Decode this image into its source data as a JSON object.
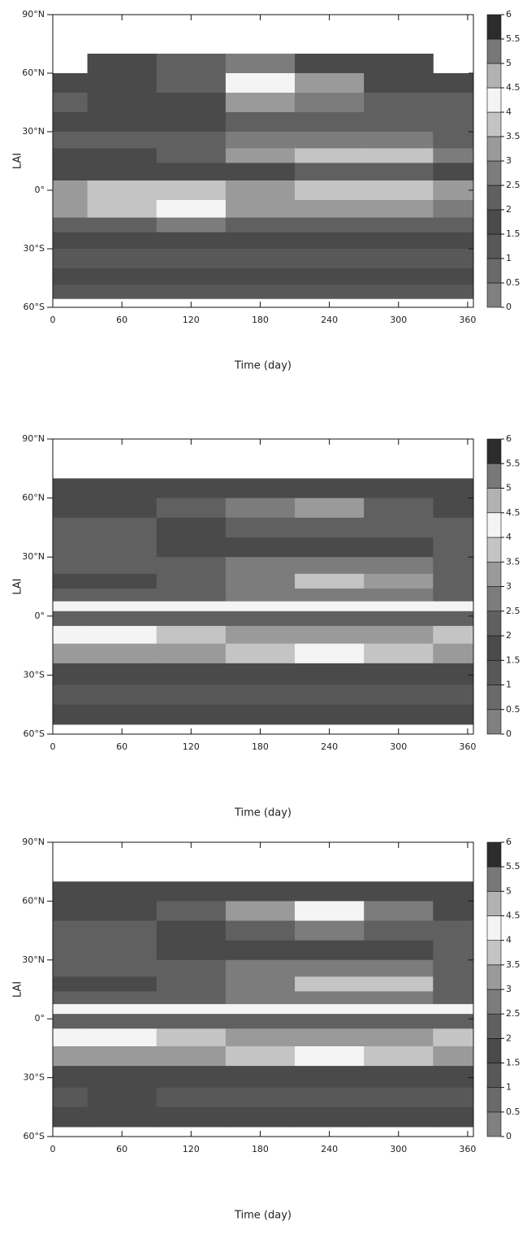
{
  "chart_data": [
    {
      "type": "heatmap",
      "xlabel": "Time (day)",
      "ylabel": "LAI",
      "x": [
        0,
        60,
        120,
        180,
        240,
        300,
        360
      ],
      "y": [
        65,
        55,
        45,
        35,
        25,
        18,
        10,
        0,
        -10,
        -18,
        -25,
        -35,
        -45,
        -52
      ],
      "z": [
        [
          null,
          1.5,
          2,
          2.5,
          1.5,
          1.5,
          null
        ],
        [
          1.5,
          1.5,
          2,
          4,
          3,
          1.5,
          1.5
        ],
        [
          2,
          1.5,
          1.5,
          3,
          2.5,
          2,
          2
        ],
        [
          1.5,
          1.5,
          1.5,
          2,
          2,
          2,
          2
        ],
        [
          2,
          2,
          2,
          2.5,
          2.5,
          2.5,
          2
        ],
        [
          1.5,
          1.5,
          2,
          3,
          3.5,
          3.5,
          2.5
        ],
        [
          1.5,
          1.5,
          1.5,
          1.5,
          2,
          2,
          1.5
        ],
        [
          3,
          3.5,
          3.5,
          3,
          3.5,
          3.5,
          3
        ],
        [
          3,
          3.5,
          4,
          3,
          3,
          3,
          2.5
        ],
        [
          2,
          2,
          2.5,
          2,
          2,
          2,
          2
        ],
        [
          1.5,
          1.5,
          1.5,
          1.5,
          1.5,
          1.5,
          1.5
        ],
        [
          1,
          1,
          1,
          1,
          1,
          1,
          1
        ],
        [
          1.5,
          1.5,
          1.5,
          1.5,
          1.5,
          1.5,
          1.5
        ],
        [
          1,
          1,
          1,
          1,
          1,
          1,
          1
        ]
      ],
      "xlim": [
        0,
        365
      ],
      "ylim": [
        -60,
        90
      ],
      "xticks": [
        0,
        60,
        120,
        180,
        240,
        300,
        360
      ],
      "yticks": [
        {
          "value": 90,
          "label": "90°N"
        },
        {
          "value": 60,
          "label": "60°N"
        },
        {
          "value": 30,
          "label": "30°N"
        },
        {
          "value": 0,
          "label": "0°"
        },
        {
          "value": -30,
          "label": "30°S"
        },
        {
          "value": -60,
          "label": "60°S"
        }
      ],
      "clevels": [
        0,
        0.5,
        1,
        1.5,
        2,
        2.5,
        3,
        3.5,
        4,
        4.5,
        5,
        5.5,
        6
      ],
      "colors": [
        "#808080",
        "#6a6a6a",
        "#585858",
        "#4a4a4a",
        "#606060",
        "#7c7c7c",
        "#9a9a9a",
        "#c4c4c4",
        "#f4f4f4",
        "#b2b2b2",
        "#787878",
        "#2c2c2c"
      ]
    },
    {
      "type": "heatmap",
      "xlabel": "Time (day)",
      "ylabel": "LAI",
      "x": [
        0,
        60,
        120,
        180,
        240,
        300,
        360
      ],
      "y": [
        65,
        55,
        45,
        35,
        25,
        18,
        10,
        5,
        0,
        -10,
        -18,
        -30,
        -40,
        -50
      ],
      "z": [
        [
          1.5,
          1.5,
          1.5,
          1.5,
          1.5,
          1.5,
          1.5
        ],
        [
          1.5,
          1.5,
          2,
          2.5,
          3,
          2,
          1.5
        ],
        [
          2,
          2,
          1.5,
          2,
          2,
          2,
          2
        ],
        [
          2,
          2,
          1.5,
          1.5,
          1.5,
          1.5,
          2
        ],
        [
          2,
          2,
          2,
          2.5,
          2.5,
          2.5,
          2
        ],
        [
          1.5,
          1.5,
          2,
          2.5,
          3.5,
          3,
          2
        ],
        [
          2,
          2,
          2,
          2.5,
          2.5,
          2.5,
          2
        ],
        [
          4,
          4,
          4,
          4,
          4,
          4,
          4
        ],
        [
          2,
          2,
          2,
          2,
          2,
          2,
          2
        ],
        [
          4,
          4,
          3.5,
          3,
          3,
          3,
          3.5
        ],
        [
          3,
          3,
          3,
          3.5,
          4,
          3.5,
          3
        ],
        [
          1.5,
          1.5,
          1.5,
          1.5,
          1.5,
          1.5,
          1.5
        ],
        [
          1,
          1,
          1,
          1,
          1,
          1,
          1
        ],
        [
          1.5,
          1.5,
          1.5,
          1.5,
          1.5,
          1.5,
          1.5
        ]
      ],
      "xlim": [
        0,
        365
      ],
      "ylim": [
        -60,
        90
      ],
      "xticks": [
        0,
        60,
        120,
        180,
        240,
        300,
        360
      ],
      "yticks": [
        {
          "value": 90,
          "label": "90°N"
        },
        {
          "value": 60,
          "label": "60°N"
        },
        {
          "value": 30,
          "label": "30°N"
        },
        {
          "value": 0,
          "label": "0°"
        },
        {
          "value": -30,
          "label": "30°S"
        },
        {
          "value": -60,
          "label": "60°S"
        }
      ],
      "clevels": [
        0,
        0.5,
        1,
        1.5,
        2,
        2.5,
        3,
        3.5,
        4,
        4.5,
        5,
        5.5,
        6
      ],
      "colors": [
        "#808080",
        "#6a6a6a",
        "#585858",
        "#4a4a4a",
        "#606060",
        "#7c7c7c",
        "#9a9a9a",
        "#c4c4c4",
        "#f4f4f4",
        "#b2b2b2",
        "#787878",
        "#2c2c2c"
      ]
    },
    {
      "type": "heatmap",
      "xlabel": "Time (day)",
      "ylabel": "LAI",
      "x": [
        0,
        60,
        120,
        180,
        240,
        300,
        360
      ],
      "y": [
        65,
        55,
        45,
        35,
        25,
        18,
        10,
        5,
        0,
        -10,
        -18,
        -30,
        -40,
        -50
      ],
      "z": [
        [
          1.5,
          1.5,
          1.5,
          1.5,
          1.5,
          1.5,
          1.5
        ],
        [
          1.5,
          1.5,
          2,
          3,
          4,
          2.5,
          1.5
        ],
        [
          2,
          2,
          1.5,
          2,
          2.5,
          2,
          2
        ],
        [
          2,
          2,
          1.5,
          1.5,
          1.5,
          1.5,
          2
        ],
        [
          2,
          2,
          2,
          2.5,
          2.5,
          2.5,
          2
        ],
        [
          1.5,
          1.5,
          2,
          2.5,
          3.5,
          3.5,
          2
        ],
        [
          2,
          2,
          2,
          2.5,
          2.5,
          2.5,
          2
        ],
        [
          4,
          4,
          4,
          4,
          4,
          4,
          4
        ],
        [
          2,
          2,
          2,
          2,
          2,
          2,
          2
        ],
        [
          4,
          4,
          3.5,
          3,
          3,
          3,
          3.5
        ],
        [
          3,
          3,
          3,
          3.5,
          4,
          3.5,
          3
        ],
        [
          1.5,
          1.5,
          1.5,
          1.5,
          1.5,
          1.5,
          1.5
        ],
        [
          1,
          1.5,
          1,
          1,
          1,
          1,
          1
        ],
        [
          1.5,
          1.5,
          1.5,
          1.5,
          1.5,
          1.5,
          1.5
        ]
      ],
      "xlim": [
        0,
        365
      ],
      "ylim": [
        -60,
        90
      ],
      "xticks": [
        0,
        60,
        120,
        180,
        240,
        300,
        360
      ],
      "yticks": [
        {
          "value": 90,
          "label": "90°N"
        },
        {
          "value": 60,
          "label": "60°N"
        },
        {
          "value": 30,
          "label": "30°N"
        },
        {
          "value": 0,
          "label": "0°"
        },
        {
          "value": -30,
          "label": "30°S"
        },
        {
          "value": -60,
          "label": "60°S"
        }
      ],
      "clevels": [
        0,
        0.5,
        1,
        1.5,
        2,
        2.5,
        3,
        3.5,
        4,
        4.5,
        5,
        5.5,
        6
      ],
      "colors": [
        "#808080",
        "#6a6a6a",
        "#585858",
        "#4a4a4a",
        "#606060",
        "#7c7c7c",
        "#9a9a9a",
        "#c4c4c4",
        "#f4f4f4",
        "#b2b2b2",
        "#787878",
        "#2c2c2c"
      ]
    }
  ]
}
